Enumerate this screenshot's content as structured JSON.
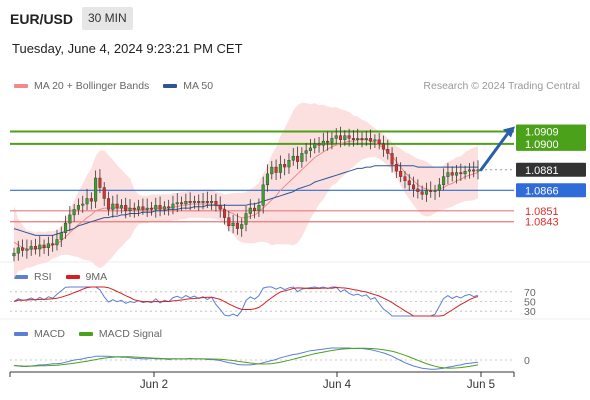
{
  "header": {
    "pair": "EUR/USD",
    "timeframe": "30 MIN",
    "datetime": "Tuesday, June 4, 2024 9:23:21 PM CET",
    "credit": "Research © 2024 Trading Central"
  },
  "legend": {
    "main": [
      {
        "label": "MA 20 + Bollinger Bands",
        "color": "#f08a8a"
      },
      {
        "label": "MA 50",
        "color": "#2b5797"
      }
    ],
    "rsi": [
      {
        "label": "RSI",
        "color": "#5b7fd6"
      },
      {
        "label": "9MA",
        "color": "#d62020"
      }
    ],
    "macd": [
      {
        "label": "MACD",
        "color": "#5b7fd6"
      },
      {
        "label": "MACD Signal",
        "color": "#4ca11a"
      }
    ]
  },
  "colors": {
    "up": "#3aa12e",
    "down": "#d9302c",
    "band": "#fcdada",
    "resistance": "#4ca11a",
    "support_blue": "#2f6bd9",
    "support_red": "#e87a7a",
    "last": "#333333",
    "arrow": "#2b5ea8"
  },
  "chart_data": {
    "type": "candlestick",
    "x_labels": [
      "Jun 2",
      "Jun 4",
      "Jun 5"
    ],
    "y_range": [
      1.0815,
      1.0935
    ],
    "levels": [
      {
        "value": 1.0909,
        "label": "1.0909",
        "role": "resistance"
      },
      {
        "value": 1.09,
        "label": "1.0900",
        "role": "resistance"
      },
      {
        "value": 1.0881,
        "label": "1.0881",
        "role": "last"
      },
      {
        "value": 1.0866,
        "label": "1.0866",
        "role": "support"
      },
      {
        "value": 1.0851,
        "label": "1.0851",
        "role": "support-red"
      },
      {
        "value": 1.0843,
        "label": "1.0843",
        "role": "support-red"
      }
    ],
    "close": [
      1.082,
      1.0824,
      1.0822,
      1.0823,
      1.0825,
      1.0823,
      1.0826,
      1.0824,
      1.0827,
      1.0826,
      1.083,
      1.0835,
      1.0842,
      1.0848,
      1.0852,
      1.0855,
      1.0856,
      1.086,
      1.0858,
      1.0875,
      1.0868,
      1.086,
      1.0852,
      1.0856,
      1.0853,
      1.0855,
      1.0851,
      1.0853,
      1.0852,
      1.0854,
      1.0852,
      1.0853,
      1.0852,
      1.0855,
      1.0852,
      1.0854,
      1.0853,
      1.0856,
      1.0857,
      1.0856,
      1.0858,
      1.0857,
      1.0858,
      1.0857,
      1.0858,
      1.0857,
      1.0858,
      1.0855,
      1.0852,
      1.0846,
      1.084,
      1.0842,
      1.0838,
      1.0841,
      1.0849,
      1.0853,
      1.0851,
      1.0855,
      1.087,
      1.0878,
      1.0883,
      1.0879,
      1.0885,
      1.0883,
      1.0888,
      1.0891,
      1.0887,
      1.0893,
      1.0895,
      1.0897,
      1.09,
      1.0899,
      1.0902,
      1.0901,
      1.0904,
      1.0906,
      1.0903,
      1.0906,
      1.0904,
      1.0903,
      1.0904,
      1.0903,
      1.0904,
      1.0902,
      1.0903,
      1.09,
      1.0896,
      1.0893,
      1.0885,
      1.088,
      1.0876,
      1.0873,
      1.087,
      1.0867,
      1.0865,
      1.0863,
      1.0866,
      1.0865,
      1.0866,
      1.087,
      1.0876,
      1.0879,
      1.0877,
      1.0879,
      1.0878,
      1.088,
      1.0881,
      1.088,
      1.0881
    ],
    "ma20_series": [
      1.0828,
      1.0826,
      1.0824,
      1.0823,
      1.0823,
      1.0823,
      1.0824,
      1.0824,
      1.0825,
      1.0826,
      1.0827,
      1.0829,
      1.0832,
      1.0835,
      1.0838,
      1.0841,
      1.0843,
      1.0846,
      1.0848,
      1.0851,
      1.0852,
      1.0853,
      1.0853,
      1.0853,
      1.0853,
      1.0853,
      1.0853,
      1.0853,
      1.0852,
      1.0852,
      1.0852,
      1.0852,
      1.0853,
      1.0853,
      1.0853,
      1.0853,
      1.0853,
      1.0854,
      1.0854,
      1.0855,
      1.0855,
      1.0856,
      1.0856,
      1.0856,
      1.0856,
      1.0856,
      1.0856,
      1.0855,
      1.0854,
      1.0852,
      1.085,
      1.0849,
      1.0847,
      1.0846,
      1.0846,
      1.0847,
      1.0848,
      1.085,
      1.0853,
      1.0856,
      1.0859,
      1.0862,
      1.0866,
      1.0869,
      1.0872,
      1.0875,
      1.0878,
      1.0881,
      1.0884,
      1.0887,
      1.089,
      1.0892,
      1.0894,
      1.0896,
      1.0898,
      1.0899,
      1.09,
      1.0901,
      1.0902,
      1.0902,
      1.0903,
      1.0903,
      1.0903,
      1.0902,
      1.0901,
      1.0899,
      1.0897,
      1.0894,
      1.0891,
      1.0887,
      1.0883,
      1.0879,
      1.0876,
      1.0873,
      1.087,
      1.0868,
      1.0867,
      1.0866,
      1.0866,
      1.0867,
      1.0868,
      1.087,
      1.0871,
      1.0873,
      1.0874,
      1.0876,
      1.0877,
      1.0878,
      1.0879
    ],
    "ma50_series": [
      1.0838,
      1.0837,
      1.0836,
      1.0835,
      1.0834,
      1.0833,
      1.0833,
      1.0833,
      1.0833,
      1.0833,
      1.0834,
      1.0835,
      1.0836,
      1.0837,
      1.0838,
      1.084,
      1.0841,
      1.0842,
      1.0843,
      1.0844,
      1.0845,
      1.0846,
      1.0846,
      1.0847,
      1.0847,
      1.0848,
      1.0848,
      1.0849,
      1.0849,
      1.0849,
      1.085,
      1.085,
      1.085,
      1.0851,
      1.0851,
      1.0851,
      1.0852,
      1.0852,
      1.0852,
      1.0853,
      1.0853,
      1.0853,
      1.0854,
      1.0854,
      1.0854,
      1.0855,
      1.0855,
      1.0855,
      1.0855,
      1.0855,
      1.0855,
      1.0855,
      1.0855,
      1.0855,
      1.0855,
      1.0856,
      1.0856,
      1.0857,
      1.0858,
      1.0859,
      1.086,
      1.0861,
      1.0862,
      1.0863,
      1.0864,
      1.0865,
      1.0867,
      1.0868,
      1.0869,
      1.087,
      1.0872,
      1.0873,
      1.0874,
      1.0875,
      1.0876,
      1.0877,
      1.0878,
      1.0879,
      1.088,
      1.0881,
      1.0882,
      1.0882,
      1.0883,
      1.0883,
      1.0884,
      1.0884,
      1.0884,
      1.0884,
      1.0884,
      1.0884,
      1.0884,
      1.0884,
      1.0884,
      1.0884,
      1.0883,
      1.0883,
      1.0883,
      1.0883,
      1.0883,
      1.0883,
      1.0883,
      1.0883,
      1.0883,
      1.0883,
      1.0883,
      1.0883,
      1.0883,
      1.0883,
      1.0883
    ],
    "rsi": {
      "levels": [
        70,
        50,
        30
      ],
      "range": [
        20,
        80
      ]
    },
    "macd": {
      "zero_label": "0"
    }
  }
}
